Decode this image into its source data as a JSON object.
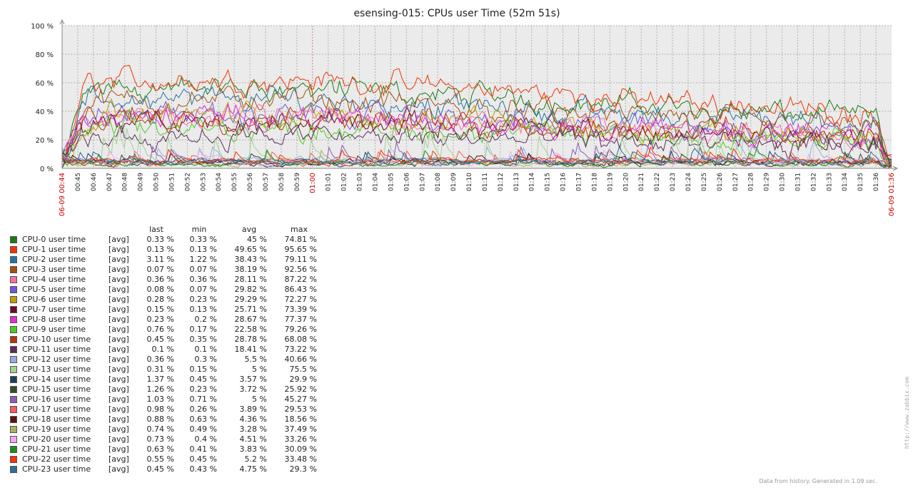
{
  "chart_data": {
    "type": "line",
    "title": "esensing-015: CPUs user Time (52m 51s)",
    "y_ticks": [
      "100 %",
      "80 %",
      "60 %",
      "40 %",
      "20 %",
      "0 %"
    ],
    "ylim": [
      0,
      100
    ],
    "x_ticks": [
      "00:45",
      "00:46",
      "00:47",
      "00:48",
      "00:49",
      "00:50",
      "00:51",
      "00:52",
      "00:53",
      "00:54",
      "00:55",
      "00:56",
      "00:57",
      "00:58",
      "00:59",
      "01:00",
      "01:01",
      "01:02",
      "01:03",
      "01:04",
      "01:05",
      "01:06",
      "01:07",
      "01:08",
      "01:09",
      "01:10",
      "01:11",
      "01:12",
      "01:13",
      "01:14",
      "01:15",
      "01:16",
      "01:17",
      "01:18",
      "01:19",
      "01:20",
      "01:21",
      "01:22",
      "01:23",
      "01:24",
      "01:25",
      "01:26",
      "01:27",
      "01:28",
      "01:29",
      "01:30",
      "01:31",
      "01:32",
      "01:33",
      "01:34",
      "01:35",
      "01:36"
    ],
    "x_start_label": "06-09 00:44",
    "x_end_label": "06-09 01:36",
    "grid": true,
    "legend_position": "bottom-left",
    "legend_headers": [
      "last",
      "min",
      "avg",
      "max"
    ],
    "series": [
      {
        "name": "CPU-0 user time",
        "func": "[avg]",
        "color": "#1a7c11",
        "last": "0.33 %",
        "min": "0.33 %",
        "avg": "45 %",
        "max": "74.81 %"
      },
      {
        "name": "CPU-1 user time",
        "func": "[avg]",
        "color": "#f63100",
        "last": "0.13 %",
        "min": "0.13 %",
        "avg": "49.65 %",
        "max": "95.65 %"
      },
      {
        "name": "CPU-2 user time",
        "func": "[avg]",
        "color": "#2774a4",
        "last": "3.11 %",
        "min": "1.22 %",
        "avg": "38.43 %",
        "max": "79.11 %"
      },
      {
        "name": "CPU-3 user time",
        "func": "[avg]",
        "color": "#a54f10",
        "last": "0.07 %",
        "min": "0.07 %",
        "avg": "38.19 %",
        "max": "92.56 %"
      },
      {
        "name": "CPU-4 user time",
        "func": "[avg]",
        "color": "#fc6ea3",
        "last": "0.36 %",
        "min": "0.36 %",
        "avg": "28.11 %",
        "max": "87.22 %"
      },
      {
        "name": "CPU-5 user time",
        "func": "[avg]",
        "color": "#6c59dc",
        "last": "0.08 %",
        "min": "0.07 %",
        "avg": "29.82 %",
        "max": "86.43 %"
      },
      {
        "name": "CPU-6 user time",
        "func": "[avg]",
        "color": "#c19e00",
        "last": "0.28 %",
        "min": "0.23 %",
        "avg": "29.29 %",
        "max": "72.27 %"
      },
      {
        "name": "CPU-7 user time",
        "func": "[avg]",
        "color": "#6b0c29",
        "last": "0.15 %",
        "min": "0.13 %",
        "avg": "25.71 %",
        "max": "73.39 %"
      },
      {
        "name": "CPU-8 user time",
        "func": "[avg]",
        "color": "#e52ccc",
        "last": "0.23 %",
        "min": "0.2 %",
        "avg": "28.67 %",
        "max": "77.37 %"
      },
      {
        "name": "CPU-9 user time",
        "func": "[avg]",
        "color": "#4ecb1f",
        "last": "0.76 %",
        "min": "0.17 %",
        "avg": "22.58 %",
        "max": "79.26 %"
      },
      {
        "name": "CPU-10 user time",
        "func": "[avg]",
        "color": "#b53609",
        "last": "0.45 %",
        "min": "0.35 %",
        "avg": "28.78 %",
        "max": "68.08 %"
      },
      {
        "name": "CPU-11 user time",
        "func": "[avg]",
        "color": "#5b2e5a",
        "last": "0.1 %",
        "min": "0.1 %",
        "avg": "18.41 %",
        "max": "73.22 %"
      },
      {
        "name": "CPU-12 user time",
        "func": "[avg]",
        "color": "#95abdf",
        "last": "0.36 %",
        "min": "0.3 %",
        "avg": "5.5 %",
        "max": "40.66 %"
      },
      {
        "name": "CPU-13 user time",
        "func": "[avg]",
        "color": "#a3d190",
        "last": "0.31 %",
        "min": "0.15 %",
        "avg": "5 %",
        "max": "75.5 %"
      },
      {
        "name": "CPU-14 user time",
        "func": "[avg]",
        "color": "#1c3f61",
        "last": "1.37 %",
        "min": "0.45 %",
        "avg": "3.57 %",
        "max": "29.9 %"
      },
      {
        "name": "CPU-15 user time",
        "func": "[avg]",
        "color": "#2f4f2f",
        "last": "1.26 %",
        "min": "0.23 %",
        "avg": "3.72 %",
        "max": "25.92 %"
      },
      {
        "name": "CPU-16 user time",
        "func": "[avg]",
        "color": "#8e5bb8",
        "last": "1.03 %",
        "min": "0.71 %",
        "avg": "5 %",
        "max": "45.27 %"
      },
      {
        "name": "CPU-17 user time",
        "func": "[avg]",
        "color": "#ff5a5a",
        "last": "0.98 %",
        "min": "0.26 %",
        "avg": "3.89 %",
        "max": "29.53 %"
      },
      {
        "name": "CPU-18 user time",
        "func": "[avg]",
        "color": "#5c1414",
        "last": "0.88 %",
        "min": "0.63 %",
        "avg": "4.36 %",
        "max": "18.56 %"
      },
      {
        "name": "CPU-19 user time",
        "func": "[avg]",
        "color": "#a8b060",
        "last": "0.74 %",
        "min": "0.49 %",
        "avg": "3.28 %",
        "max": "37.49 %"
      },
      {
        "name": "CPU-20 user time",
        "func": "[avg]",
        "color": "#f2a6f2",
        "last": "0.73 %",
        "min": "0.4 %",
        "avg": "4.51 %",
        "max": "33.26 %"
      },
      {
        "name": "CPU-21 user time",
        "func": "[avg]",
        "color": "#1b8c1b",
        "last": "0.63 %",
        "min": "0.41 %",
        "avg": "3.83 %",
        "max": "30.09 %"
      },
      {
        "name": "CPU-22 user time",
        "func": "[avg]",
        "color": "#ff3300",
        "last": "0.55 %",
        "min": "0.45 %",
        "avg": "5.2 %",
        "max": "33.48 %"
      },
      {
        "name": "CPU-23 user time",
        "func": "[avg]",
        "color": "#2b6e9c",
        "last": "0.45 %",
        "min": "0.43 %",
        "avg": "4.75 %",
        "max": "29.3 %"
      }
    ]
  },
  "footer": {
    "side_url": "http://www.zabbix.com",
    "generated": "Data from history. Generated in 1.09 sec."
  }
}
